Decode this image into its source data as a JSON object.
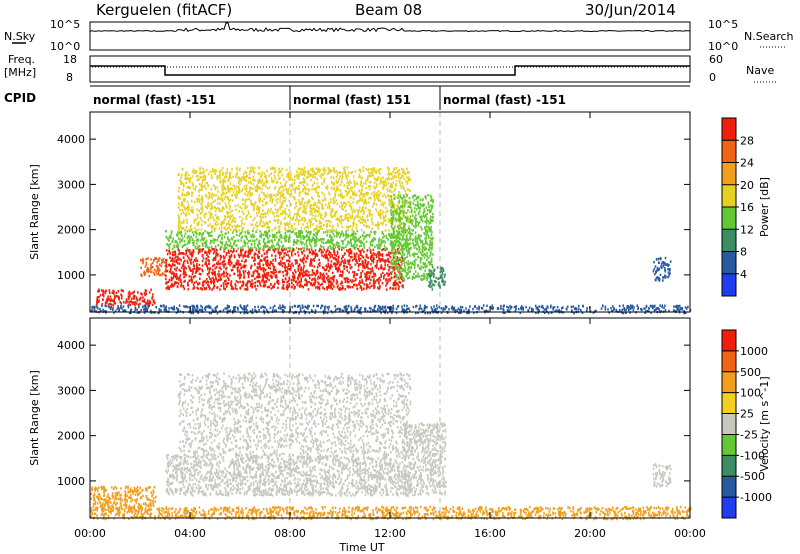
{
  "header": {
    "station": "Kerguelen (fitACF)",
    "beam": "Beam 08",
    "date": "30/Jun/2014"
  },
  "top_panels": {
    "nsky_label": "N.Sky",
    "nsky_ticks": [
      "10^5",
      "10^0"
    ],
    "nsearch_label": "N.Search",
    "nsearch_ticks": [
      "10^5",
      "10^0"
    ],
    "freq_label_1": "Freq.",
    "freq_label_2": "[MHz]",
    "freq_ticks": [
      "18",
      "8"
    ],
    "nave_label": "Nave",
    "nave_ticks": [
      "60",
      "0"
    ],
    "cpid_label": "CPID",
    "cpid_segments": [
      {
        "start_hour": 0,
        "end_hour": 8,
        "text": "normal (fast) -151"
      },
      {
        "start_hour": 8,
        "end_hour": 14,
        "text": "normal (fast) 151"
      },
      {
        "start_hour": 14,
        "end_hour": 24,
        "text": "normal (fast) -151"
      }
    ]
  },
  "x_axis": {
    "label": "Time UT",
    "tick_labels": [
      "00:00",
      "04:00",
      "08:00",
      "12:00",
      "16:00",
      "20:00",
      "00:00"
    ],
    "tick_hours": [
      0,
      4,
      8,
      12,
      16,
      20,
      24
    ]
  },
  "chart_data": [
    {
      "type": "heatmap",
      "name": "power",
      "ylabel": "Slant Range [km]",
      "ylim": [
        180,
        4600
      ],
      "y_ticks": [
        1000,
        2000,
        3000,
        4000
      ],
      "xlim": [
        0,
        24
      ],
      "colorbar_label": "Power [dB]",
      "colorbar_ticks": [
        "4",
        "8",
        "12",
        "16",
        "20",
        "24",
        "28"
      ],
      "colorbar_colors": [
        "#1e3cf0",
        "#285aa0",
        "#3c8c64",
        "#64c832",
        "#e6d21e",
        "#f0a01e",
        "#f06414",
        "#f01e0a"
      ],
      "regions": [
        {
          "t0": 0.2,
          "t1": 2.6,
          "r0": 350,
          "r1": 700,
          "color": "#f01e0a"
        },
        {
          "t0": 2.0,
          "t1": 3.0,
          "r0": 1000,
          "r1": 1400,
          "color": "#f06414"
        },
        {
          "t0": 3.0,
          "t1": 12.5,
          "r0": 700,
          "r1": 1600,
          "color": "#f01e0a"
        },
        {
          "t0": 3.0,
          "t1": 12.8,
          "r0": 1600,
          "r1": 2000,
          "color": "#64c832"
        },
        {
          "t0": 3.5,
          "t1": 12.8,
          "r0": 2000,
          "r1": 3400,
          "color": "#e6d21e"
        },
        {
          "t0": 12.0,
          "t1": 13.7,
          "r0": 900,
          "r1": 2800,
          "color": "#64c832"
        },
        {
          "t0": 13.5,
          "t1": 14.2,
          "r0": 700,
          "r1": 1200,
          "color": "#3c8c64"
        },
        {
          "t0": 0.0,
          "t1": 24.0,
          "r0": 180,
          "r1": 350,
          "color": "#285aa0"
        },
        {
          "t0": 22.5,
          "t1": 23.2,
          "r0": 900,
          "r1": 1400,
          "color": "#285aa0"
        }
      ]
    },
    {
      "type": "heatmap",
      "name": "velocity",
      "ylabel": "Slant Range [km]",
      "ylim": [
        180,
        4600
      ],
      "y_ticks": [
        1000,
        2000,
        3000,
        4000
      ],
      "xlim": [
        0,
        24
      ],
      "colorbar_label": "Velocity [m s^-1]",
      "colorbar_ticks": [
        "1000",
        "500",
        "100",
        "25",
        "-25",
        "-100",
        "-500",
        "-1000"
      ],
      "colorbar_colors": [
        "#1e3cf0",
        "#285aa0",
        "#3c8c64",
        "#64c832",
        "#c8c8c0",
        "#f0d21e",
        "#f0a01e",
        "#f06414",
        "#f01e0a"
      ],
      "regions": [
        {
          "t0": 0.0,
          "t1": 2.6,
          "r0": 350,
          "r1": 900,
          "color": "#f0a01e"
        },
        {
          "t0": 3.0,
          "t1": 12.8,
          "r0": 700,
          "r1": 1600,
          "color": "#c8c8c0"
        },
        {
          "t0": 3.5,
          "t1": 12.8,
          "r0": 1600,
          "r1": 3400,
          "color": "#c8c8c0"
        },
        {
          "t0": 12.5,
          "t1": 14.2,
          "r0": 700,
          "r1": 2300,
          "color": "#c8c8c0"
        },
        {
          "t0": 0.0,
          "t1": 24.0,
          "r0": 180,
          "r1": 450,
          "color": "#f0a01e"
        },
        {
          "t0": 22.5,
          "t1": 23.2,
          "r0": 900,
          "r1": 1400,
          "color": "#c8c8c0"
        }
      ]
    }
  ]
}
